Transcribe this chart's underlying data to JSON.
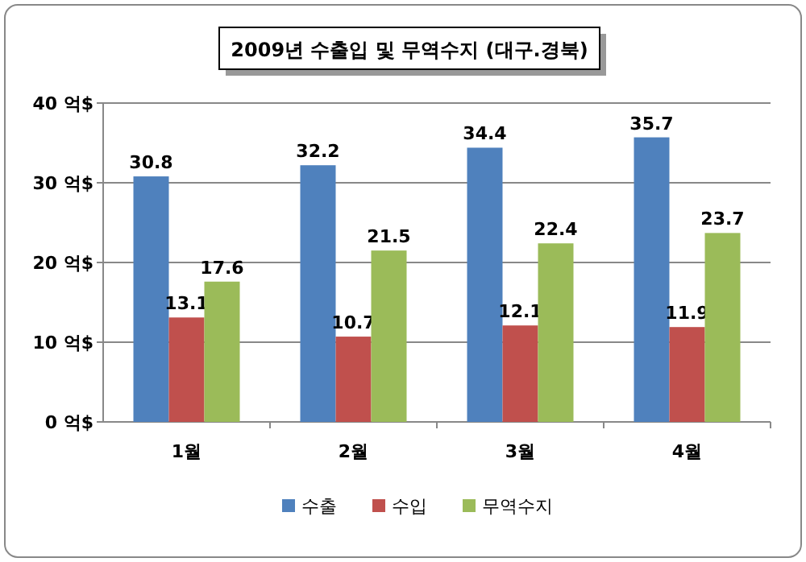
{
  "chart_data": {
    "type": "bar",
    "title": "2009년 수출입 및 무역수지 (대구.경북)",
    "categories": [
      "1월",
      "2월",
      "3월",
      "4월"
    ],
    "series": [
      {
        "name": "수출",
        "color": "#4f81bd",
        "values": [
          30.8,
          32.2,
          34.4,
          35.7
        ]
      },
      {
        "name": "수입",
        "color": "#c0504d",
        "values": [
          13.1,
          10.7,
          12.1,
          11.9
        ]
      },
      {
        "name": "무역수지",
        "color": "#9bbb59",
        "values": [
          17.6,
          21.5,
          22.4,
          23.7
        ]
      }
    ],
    "ylim": [
      0,
      40
    ],
    "yticks": [
      {
        "value": 0,
        "label": "0 억$"
      },
      {
        "value": 10,
        "label": "10 억$"
      },
      {
        "value": 20,
        "label": "20 억$"
      },
      {
        "value": 30,
        "label": "30 억$"
      },
      {
        "value": 40,
        "label": "40 억$"
      }
    ],
    "grid": "y",
    "data_labels": true,
    "legend": "bottom"
  }
}
